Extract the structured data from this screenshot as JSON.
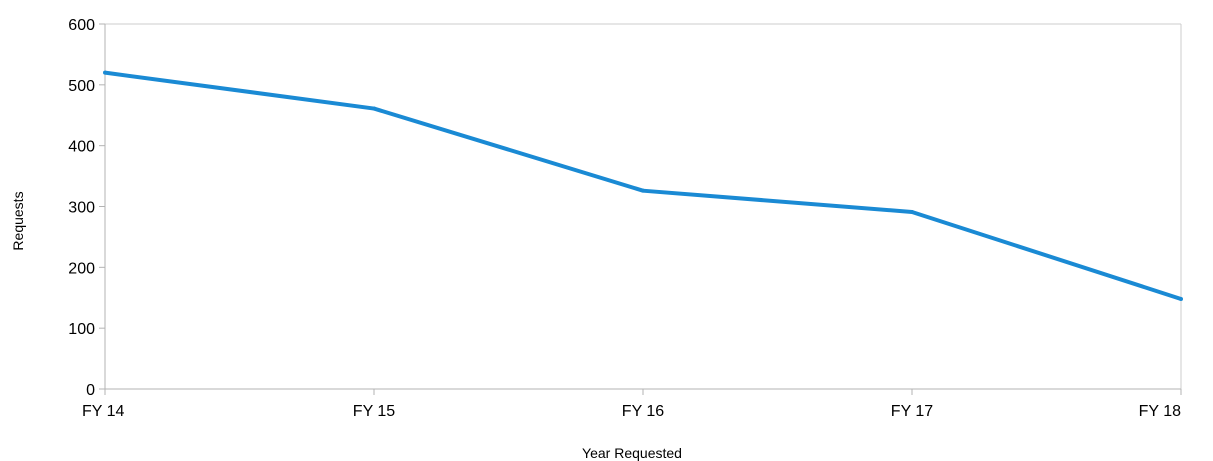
{
  "chart_data": {
    "type": "line",
    "title": "",
    "xlabel": "Year Requested",
    "ylabel": "Requests",
    "categories": [
      "FY 14",
      "FY 15",
      "FY 16",
      "FY 17",
      "FY 18"
    ],
    "series": [
      {
        "values": [
          520,
          461,
          326,
          291,
          148
        ],
        "color": "#1a8ad4"
      }
    ],
    "ylim": [
      0,
      600
    ],
    "yticks": [
      "0",
      "100",
      "200",
      "300",
      "400",
      "500",
      "600"
    ],
    "grid": false,
    "legend": "none",
    "colors": {
      "line": "#1a8ad4",
      "axis": "#b3b3b3",
      "frame": "#cccccc",
      "text": "#000000"
    }
  }
}
